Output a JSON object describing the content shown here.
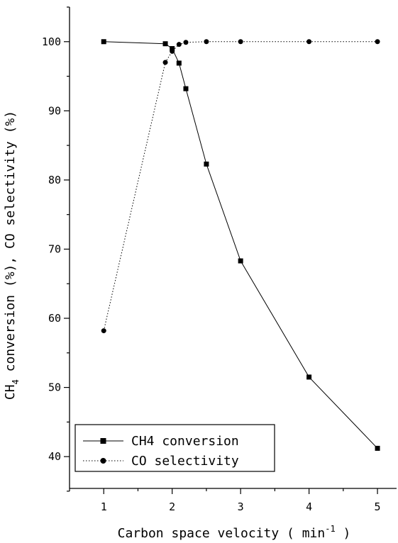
{
  "chart_data": {
    "type": "line",
    "xlabel": "Carbon space velocity ( min",
    "xlabel_sup": "-1",
    "xlabel_end": " )",
    "ylabel_part1": "CH",
    "ylabel_sub": "4",
    "ylabel_part2": " conversion (%), CO selectivity (%)",
    "xlim": [
      0.5,
      5.3
    ],
    "ylim": [
      35.4,
      105
    ],
    "xticks": [
      1,
      2,
      3,
      4,
      5
    ],
    "yticks": [
      40,
      50,
      60,
      70,
      80,
      90,
      100
    ],
    "legend_position": "bottom-left",
    "series": [
      {
        "name": "CH4 conversion",
        "marker": "square",
        "line": "solid",
        "x": [
          1,
          1.9,
          2,
          2.1,
          2.2,
          2.5,
          3,
          4,
          5
        ],
        "y": [
          100,
          99.7,
          99.0,
          96.9,
          93.2,
          82.3,
          68.3,
          51.5,
          41.2
        ]
      },
      {
        "name": "CO selectivity",
        "marker": "circle",
        "line": "dotted",
        "x": [
          1,
          1.9,
          2,
          2.1,
          2.2,
          2.5,
          3,
          4,
          5
        ],
        "y": [
          58.2,
          97.0,
          98.6,
          99.6,
          99.9,
          100,
          100,
          100,
          100
        ]
      }
    ]
  }
}
